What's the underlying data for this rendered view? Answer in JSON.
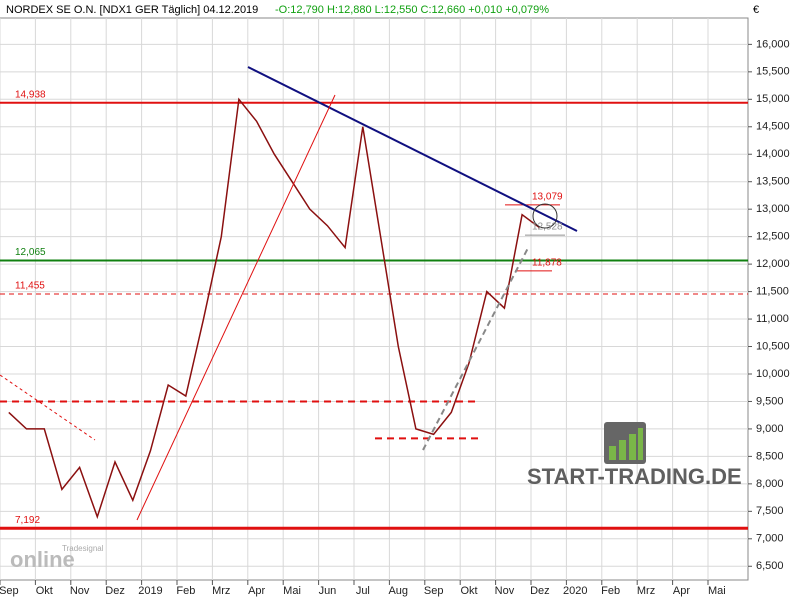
{
  "chart_data": {
    "type": "line",
    "header": [
      "NORDEX SE O.N. [NDX1 GER  Täglich] 04.12.2019",
      "-O:12,790 H:12,880 L:12,550 C:12,660 +0,010 +0,079%"
    ],
    "currency": "€",
    "brand": "START-TRADING.DE",
    "watermark": [
      "Tradesignal",
      "online"
    ],
    "categories": [
      "Sep",
      null,
      "Okt",
      null,
      "Nov",
      null,
      "Dez",
      null,
      "2019",
      null,
      "Feb",
      null,
      "Mrz",
      null,
      "Apr",
      null,
      "Mai",
      null,
      "Jun",
      null,
      "Jul",
      null,
      "Aug",
      null,
      "Sep",
      null,
      "Okt",
      null,
      "Nov",
      null,
      "Dez",
      null,
      "2020",
      null,
      "Feb",
      null,
      "Mrz",
      null,
      "Apr",
      null,
      "Mai",
      null
    ],
    "series": [
      {
        "name": "NORDEX SE O.N.",
        "color": "#8b1010",
        "values": [
          9300,
          9000,
          9000,
          7900,
          8300,
          7400,
          8400,
          7700,
          8600,
          9800,
          9600,
          11000,
          12500,
          15000,
          14600,
          14000,
          13500,
          13000,
          12700,
          12300,
          14500,
          12500,
          10500,
          9000,
          8900,
          9300,
          10200,
          11500,
          11200,
          12900,
          12660,
          null,
          null,
          null,
          null,
          null,
          null,
          null,
          null,
          null,
          null,
          null
        ]
      }
    ],
    "ylim": [
      6250,
      16480
    ],
    "yticks": [
      {
        "value": 6500,
        "label": "6,500"
      },
      {
        "value": 7000,
        "label": "7,000"
      },
      {
        "value": 7500,
        "label": "7,500"
      },
      {
        "value": 8000,
        "label": "8,000"
      },
      {
        "value": 8500,
        "label": "8,500"
      },
      {
        "value": 9000,
        "label": "9,000"
      },
      {
        "value": 9500,
        "label": "9,500"
      },
      {
        "value": 10000,
        "label": "10,000"
      },
      {
        "value": 10500,
        "label": "10,500"
      },
      {
        "value": 11000,
        "label": "11,000"
      },
      {
        "value": 11500,
        "label": "11,500"
      },
      {
        "value": 12000,
        "label": "12,000"
      },
      {
        "value": 12500,
        "label": "12,500"
      },
      {
        "value": 13000,
        "label": "13,000"
      },
      {
        "value": 13500,
        "label": "13,500"
      },
      {
        "value": 14000,
        "label": "14,000"
      },
      {
        "value": 14500,
        "label": "14,500"
      },
      {
        "value": 15000,
        "label": "15,000"
      },
      {
        "value": 15500,
        "label": "15,500"
      },
      {
        "value": 16000,
        "label": "16,000"
      }
    ],
    "grid": true,
    "levels": [
      {
        "value": 14938,
        "label": "14,938",
        "color": "#e01010"
      },
      {
        "value": 12065,
        "label": "12,065",
        "color": "#108010"
      },
      {
        "value": 11455,
        "label": "11,455",
        "color": "#e01010"
      },
      {
        "value": 7192,
        "label": "7,192",
        "color": "#e01010"
      },
      {
        "value": 9500,
        "color": "#e01010"
      },
      {
        "value": 8827,
        "color": "#e01010"
      },
      {
        "value": 13079,
        "label": "13,079",
        "color": "#e01010"
      },
      {
        "value": 12528,
        "label": "12,528",
        "color": "#909090"
      },
      {
        "value": 11878,
        "label": "11,878",
        "color": "#e01010"
      }
    ]
  }
}
